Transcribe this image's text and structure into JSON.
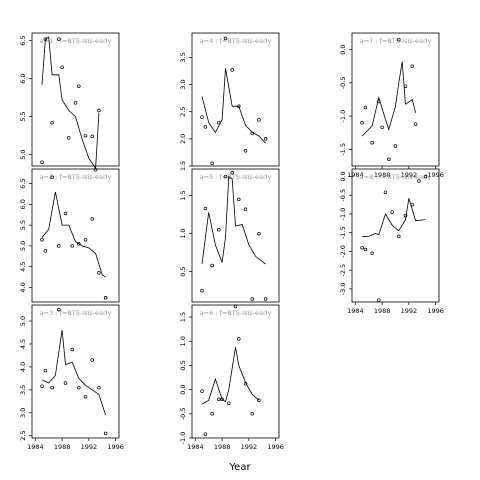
{
  "chart_data": {
    "type": "scatter",
    "xlabel": "Year",
    "xlim": [
      1983.5,
      1996.5
    ],
    "x_ticks": [
      1984,
      1988,
      1992,
      1996
    ],
    "panels": [
      {
        "label": "a=1 : f=BTS-Isis-early",
        "ylim": [
          4.85,
          6.6
        ],
        "y_ticks": [
          5.0,
          5.5,
          6.0,
          6.5
        ],
        "points": [
          [
            1985,
            4.9
          ],
          [
            1985.5,
            6.52
          ],
          [
            1986.5,
            5.42
          ],
          [
            1987.5,
            6.52
          ],
          [
            1988,
            6.15
          ],
          [
            1989,
            5.22
          ],
          [
            1990,
            5.68
          ],
          [
            1990.5,
            5.9
          ],
          [
            1991.5,
            5.25
          ],
          [
            1992.5,
            5.24
          ],
          [
            1993,
            4.8
          ],
          [
            1993.5,
            5.58
          ]
        ],
        "line": [
          [
            1985,
            5.92
          ],
          [
            1985.5,
            6.52
          ],
          [
            1986,
            6.55
          ],
          [
            1986.5,
            6.05
          ],
          [
            1987.5,
            6.05
          ],
          [
            1988,
            5.72
          ],
          [
            1989,
            5.58
          ],
          [
            1990,
            5.5
          ],
          [
            1991,
            5.2
          ],
          [
            1992,
            4.95
          ],
          [
            1993,
            4.82
          ],
          [
            1993.5,
            5.55
          ]
        ]
      },
      {
        "label": "a=4 : f=BTS-Isis-early",
        "ylim": [
          1.5,
          3.95
        ],
        "y_ticks": [
          1.5,
          2.0,
          2.5,
          3.0,
          3.5
        ],
        "points": [
          [
            1985,
            2.4
          ],
          [
            1985.5,
            2.22
          ],
          [
            1986.5,
            1.55
          ],
          [
            1987.5,
            2.3
          ],
          [
            1988.5,
            3.85
          ],
          [
            1989.5,
            3.27
          ],
          [
            1990.5,
            2.6
          ],
          [
            1991.5,
            1.78
          ],
          [
            1992.5,
            2.1
          ],
          [
            1993.5,
            2.35
          ],
          [
            1994.5,
            2.0
          ]
        ],
        "line": [
          [
            1985,
            2.78
          ],
          [
            1986,
            2.3
          ],
          [
            1987,
            2.12
          ],
          [
            1988,
            2.35
          ],
          [
            1988.5,
            3.3
          ],
          [
            1989.5,
            2.6
          ],
          [
            1990.5,
            2.6
          ],
          [
            1991.5,
            2.25
          ],
          [
            1992.5,
            2.12
          ],
          [
            1993.5,
            2.05
          ],
          [
            1994.5,
            1.92
          ]
        ]
      },
      {
        "label": "a=7 : f=BTS-Isis-early",
        "ylim": [
          -1.75,
          0.25
        ],
        "y_ticks": [
          -1.5,
          -1.0,
          -0.5,
          0.0
        ],
        "points": [
          [
            1985,
            -1.1
          ],
          [
            1985.5,
            -0.87
          ],
          [
            1986.5,
            -1.4
          ],
          [
            1987.5,
            -0.78
          ],
          [
            1988,
            -1.17
          ],
          [
            1989,
            -1.65
          ],
          [
            1990,
            -1.45
          ],
          [
            1990.5,
            0.15
          ],
          [
            1991.5,
            -0.55
          ],
          [
            1992.5,
            -0.25
          ],
          [
            1993,
            -1.12
          ]
        ],
        "line": [
          [
            1985,
            -1.3
          ],
          [
            1986,
            -1.2
          ],
          [
            1986.5,
            -1.15
          ],
          [
            1987.5,
            -0.72
          ],
          [
            1988.5,
            -1.05
          ],
          [
            1989,
            -1.2
          ],
          [
            1990,
            -0.85
          ],
          [
            1990.5,
            -0.5
          ],
          [
            1991,
            -0.18
          ],
          [
            1991.5,
            -0.82
          ],
          [
            1992.5,
            -0.75
          ],
          [
            1993,
            -0.95
          ]
        ]
      },
      {
        "label": "a=2 : f=BTS-Isis-early",
        "ylim": [
          3.65,
          6.85
        ],
        "y_ticks": [
          4.0,
          4.5,
          5.0,
          5.5,
          6.0,
          6.5
        ],
        "points": [
          [
            1985,
            5.15
          ],
          [
            1985.5,
            4.88
          ],
          [
            1986.5,
            6.65
          ],
          [
            1987.5,
            5.0
          ],
          [
            1988.5,
            5.78
          ],
          [
            1989.5,
            5.0
          ],
          [
            1990.5,
            5.05
          ],
          [
            1991.5,
            5.15
          ],
          [
            1992.5,
            5.65
          ],
          [
            1993.5,
            4.35
          ],
          [
            1994.5,
            3.75
          ]
        ],
        "line": [
          [
            1985,
            5.2
          ],
          [
            1986,
            5.4
          ],
          [
            1987,
            6.3
          ],
          [
            1988,
            5.5
          ],
          [
            1989,
            5.5
          ],
          [
            1990,
            5.1
          ],
          [
            1991,
            5.0
          ],
          [
            1992,
            4.95
          ],
          [
            1993,
            4.82
          ],
          [
            1994,
            4.3
          ],
          [
            1994.5,
            4.25
          ]
        ]
      },
      {
        "label": "a=5 : f=BTS-Isis-early",
        "ylim": [
          0.1,
          1.85
        ],
        "y_ticks": [
          0.5,
          1.0,
          1.5
        ],
        "points": [
          [
            1985,
            0.25
          ],
          [
            1985.5,
            1.33
          ],
          [
            1986.5,
            0.58
          ],
          [
            1987.5,
            1.05
          ],
          [
            1988.5,
            1.75
          ],
          [
            1989.5,
            1.8
          ],
          [
            1990.5,
            1.45
          ],
          [
            1991.5,
            1.32
          ],
          [
            1992.5,
            0.14
          ],
          [
            1993.5,
            1.0
          ],
          [
            1994.5,
            0.14
          ]
        ],
        "line": [
          [
            1985,
            0.6
          ],
          [
            1986,
            1.28
          ],
          [
            1987,
            0.85
          ],
          [
            1988,
            0.62
          ],
          [
            1988.5,
            0.95
          ],
          [
            1989,
            1.75
          ],
          [
            1989.5,
            1.72
          ],
          [
            1990,
            1.1
          ],
          [
            1991,
            1.12
          ],
          [
            1992,
            0.85
          ],
          [
            1993,
            0.7
          ],
          [
            1994.5,
            0.6
          ]
        ]
      },
      {
        "label": "a=8 : f=BTS-Isis-early",
        "ylim": [
          -3.35,
          0.2
        ],
        "y_ticks": [
          -3.0,
          -2.5,
          -2.0,
          -1.5,
          -1.0,
          -0.5,
          0.0
        ],
        "points": [
          [
            1985,
            -1.9
          ],
          [
            1985.5,
            -1.95
          ],
          [
            1986.5,
            -2.05
          ],
          [
            1987.5,
            -3.3
          ],
          [
            1988.5,
            -0.42
          ],
          [
            1989.5,
            -0.95
          ],
          [
            1990.5,
            -1.6
          ],
          [
            1991.5,
            -1.05
          ],
          [
            1992.5,
            -0.75
          ],
          [
            1993.5,
            -0.12
          ],
          [
            1994.5,
            0.0
          ]
        ],
        "line": [
          [
            1985,
            -1.6
          ],
          [
            1986,
            -1.6
          ],
          [
            1987,
            -1.52
          ],
          [
            1987.5,
            -1.55
          ],
          [
            1988.5,
            -1.0
          ],
          [
            1989.5,
            -1.3
          ],
          [
            1990.5,
            -1.45
          ],
          [
            1991.5,
            -1.15
          ],
          [
            1992,
            -0.58
          ],
          [
            1993,
            -1.18
          ],
          [
            1994.5,
            -1.15
          ]
        ]
      },
      {
        "label": "a=3 : f=BTS-Isis-early",
        "ylim": [
          2.45,
          5.35
        ],
        "y_ticks": [
          2.5,
          3.0,
          3.5,
          4.0,
          4.5,
          5.0
        ],
        "points": [
          [
            1985,
            3.58
          ],
          [
            1985.5,
            3.92
          ],
          [
            1986.5,
            3.55
          ],
          [
            1987.5,
            5.25
          ],
          [
            1988.5,
            3.65
          ],
          [
            1989.5,
            4.38
          ],
          [
            1990.5,
            3.55
          ],
          [
            1991.5,
            3.35
          ],
          [
            1992.5,
            4.15
          ],
          [
            1993.5,
            3.55
          ],
          [
            1994.5,
            2.55
          ]
        ],
        "line": [
          [
            1985,
            3.72
          ],
          [
            1986,
            3.65
          ],
          [
            1987,
            3.82
          ],
          [
            1988,
            4.8
          ],
          [
            1988.5,
            4.05
          ],
          [
            1989.5,
            4.1
          ],
          [
            1990.5,
            3.75
          ],
          [
            1991.5,
            3.6
          ],
          [
            1992.5,
            3.5
          ],
          [
            1993.5,
            3.4
          ],
          [
            1994.5,
            2.95
          ]
        ]
      },
      {
        "label": "a=6 : f=BTS-Isis-early",
        "ylim": [
          -1.0,
          1.75
        ],
        "y_ticks": [
          -1.0,
          -0.5,
          0.0,
          0.5,
          1.0,
          1.5
        ],
        "points": [
          [
            1985,
            -0.03
          ],
          [
            1985.5,
            -0.92
          ],
          [
            1986.5,
            -0.5
          ],
          [
            1987.5,
            -0.2
          ],
          [
            1988,
            -0.2
          ],
          [
            1989,
            -0.28
          ],
          [
            1990,
            1.72
          ],
          [
            1990.5,
            1.05
          ],
          [
            1991.5,
            0.12
          ],
          [
            1992.5,
            -0.5
          ],
          [
            1993.5,
            -0.22
          ]
        ],
        "line": [
          [
            1985,
            -0.3
          ],
          [
            1986,
            -0.22
          ],
          [
            1987,
            0.22
          ],
          [
            1988,
            -0.2
          ],
          [
            1988.5,
            -0.25
          ],
          [
            1989,
            0.0
          ],
          [
            1990,
            0.88
          ],
          [
            1990.5,
            0.5
          ],
          [
            1991.5,
            0.15
          ],
          [
            1992.5,
            -0.1
          ],
          [
            1993.5,
            -0.22
          ]
        ]
      }
    ]
  }
}
